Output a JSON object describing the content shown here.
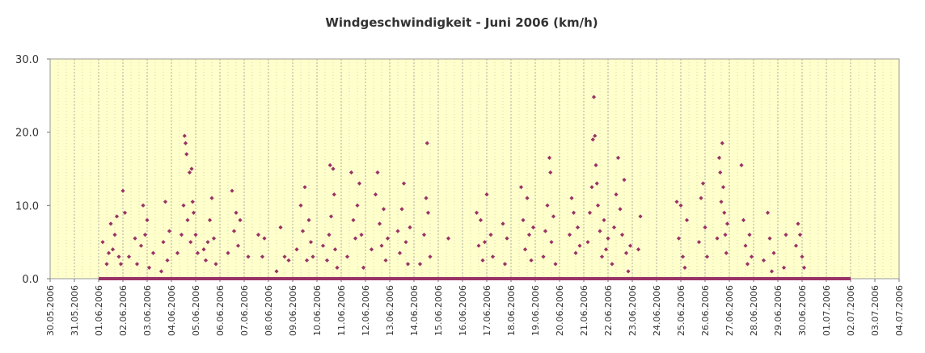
{
  "chart_data": {
    "type": "scatter",
    "title": "Windgeschwindigkeit - Juni 2006 (km/h)",
    "xlabel": "",
    "ylabel": "",
    "ylim": [
      0,
      30
    ],
    "yticks": [
      0,
      10,
      20,
      30
    ],
    "ytick_labels": [
      "0.0",
      "10.0",
      "20.0",
      "30.0"
    ],
    "xlim": [
      "30.05.2006",
      "04.07.2006"
    ],
    "xtick_labels": [
      "30.05.2006",
      "31.05.2006",
      "01.06.2006",
      "02.06.2006",
      "03.06.2006",
      "04.06.2006",
      "05.06.2006",
      "06.06.2006",
      "07.06.2006",
      "08.06.2006",
      "09.06.2006",
      "10.06.2006",
      "11.06.2006",
      "12.06.2006",
      "13.06.2006",
      "14.06.2006",
      "15.06.2006",
      "16.06.2006",
      "17.06.2006",
      "18.06.2006",
      "19.06.2006",
      "20.06.2006",
      "21.06.2006",
      "22.06.2006",
      "23.06.2006",
      "24.06.2006",
      "25.06.2006",
      "26.06.2006",
      "27.06.2006",
      "28.06.2006",
      "29.06.2006",
      "30.06.2006",
      "01.07.2006",
      "02.07.2006",
      "03.07.2006",
      "04.07.2006"
    ],
    "grid": true,
    "plot_background": "#FFFFCC",
    "marker_color": "#993366",
    "baseline": {
      "from": "01.06.2006",
      "to": "02.07.2006",
      "value": 0
    },
    "series": [
      {
        "points": [
          {
            "x": "01.06.2006 04:00",
            "y": 5.0
          },
          {
            "x": "01.06.2006 08:00",
            "y": 2.0
          },
          {
            "x": "01.06.2006 10:00",
            "y": 3.5
          },
          {
            "x": "01.06.2006 12:00",
            "y": 7.5
          },
          {
            "x": "01.06.2006 14:00",
            "y": 4.0
          },
          {
            "x": "01.06.2006 16:00",
            "y": 6.0
          },
          {
            "x": "01.06.2006 18:00",
            "y": 8.5
          },
          {
            "x": "01.06.2006 20:00",
            "y": 3.0
          },
          {
            "x": "01.06.2006 22:00",
            "y": 2.0
          },
          {
            "x": "02.06.2006 00:00",
            "y": 12.0
          },
          {
            "x": "02.06.2006 02:00",
            "y": 9.0
          },
          {
            "x": "02.06.2006 06:00",
            "y": 3.0
          },
          {
            "x": "02.06.2006 12:00",
            "y": 5.5
          },
          {
            "x": "02.06.2006 14:00",
            "y": 2.0
          },
          {
            "x": "02.06.2006 18:00",
            "y": 4.5
          },
          {
            "x": "02.06.2006 20:00",
            "y": 10.0
          },
          {
            "x": "02.06.2006 22:00",
            "y": 6.0
          },
          {
            "x": "03.06.2006 00:00",
            "y": 8.0
          },
          {
            "x": "03.06.2006 02:00",
            "y": 1.5
          },
          {
            "x": "03.06.2006 06:00",
            "y": 3.5
          },
          {
            "x": "03.06.2006 14:00",
            "y": 1.0
          },
          {
            "x": "03.06.2006 16:00",
            "y": 5.0
          },
          {
            "x": "03.06.2006 18:00",
            "y": 10.5
          },
          {
            "x": "03.06.2006 20:00",
            "y": 2.5
          },
          {
            "x": "03.06.2006 22:00",
            "y": 6.5
          },
          {
            "x": "04.06.2006 06:00",
            "y": 3.5
          },
          {
            "x": "04.06.2006 10:00",
            "y": 6.0
          },
          {
            "x": "04.06.2006 12:00",
            "y": 10.0
          },
          {
            "x": "04.06.2006 13:00",
            "y": 19.5
          },
          {
            "x": "04.06.2006 14:00",
            "y": 18.5
          },
          {
            "x": "04.06.2006 15:00",
            "y": 17.0
          },
          {
            "x": "04.06.2006 16:00",
            "y": 8.0
          },
          {
            "x": "04.06.2006 18:00",
            "y": 14.5
          },
          {
            "x": "04.06.2006 19:00",
            "y": 5.0
          },
          {
            "x": "04.06.2006 20:00",
            "y": 15.0
          },
          {
            "x": "04.06.2006 21:00",
            "y": 10.5
          },
          {
            "x": "04.06.2006 22:00",
            "y": 9.0
          },
          {
            "x": "05.06.2006 00:00",
            "y": 6.0
          },
          {
            "x": "05.06.2006 02:00",
            "y": 3.5
          },
          {
            "x": "05.06.2006 08:00",
            "y": 4.0
          },
          {
            "x": "05.06.2006 10:00",
            "y": 2.5
          },
          {
            "x": "05.06.2006 12:00",
            "y": 5.0
          },
          {
            "x": "05.06.2006 14:00",
            "y": 8.0
          },
          {
            "x": "05.06.2006 16:00",
            "y": 11.0
          },
          {
            "x": "05.06.2006 18:00",
            "y": 5.5
          },
          {
            "x": "05.06.2006 20:00",
            "y": 2.0
          },
          {
            "x": "06.06.2006 08:00",
            "y": 3.5
          },
          {
            "x": "06.06.2006 12:00",
            "y": 12.0
          },
          {
            "x": "06.06.2006 14:00",
            "y": 6.5
          },
          {
            "x": "06.06.2006 16:00",
            "y": 9.0
          },
          {
            "x": "06.06.2006 18:00",
            "y": 4.5
          },
          {
            "x": "06.06.2006 20:00",
            "y": 8.0
          },
          {
            "x": "07.06.2006 04:00",
            "y": 3.0
          },
          {
            "x": "07.06.2006 14:00",
            "y": 6.0
          },
          {
            "x": "07.06.2006 18:00",
            "y": 3.0
          },
          {
            "x": "07.06.2006 20:00",
            "y": 5.5
          },
          {
            "x": "08.06.2006 08:00",
            "y": 1.0
          },
          {
            "x": "08.06.2006 12:00",
            "y": 7.0
          },
          {
            "x": "08.06.2006 16:00",
            "y": 3.0
          },
          {
            "x": "08.06.2006 20:00",
            "y": 2.5
          },
          {
            "x": "09.06.2006 04:00",
            "y": 4.0
          },
          {
            "x": "09.06.2006 08:00",
            "y": 10.0
          },
          {
            "x": "09.06.2006 10:00",
            "y": 6.5
          },
          {
            "x": "09.06.2006 12:00",
            "y": 12.5
          },
          {
            "x": "09.06.2006 14:00",
            "y": 2.5
          },
          {
            "x": "09.06.2006 16:00",
            "y": 8.0
          },
          {
            "x": "09.06.2006 18:00",
            "y": 5.0
          },
          {
            "x": "09.06.2006 20:00",
            "y": 3.0
          },
          {
            "x": "10.06.2006 06:00",
            "y": 4.5
          },
          {
            "x": "10.06.2006 10:00",
            "y": 2.5
          },
          {
            "x": "10.06.2006 12:00",
            "y": 6.0
          },
          {
            "x": "10.06.2006 13:00",
            "y": 15.5
          },
          {
            "x": "10.06.2006 14:00",
            "y": 8.5
          },
          {
            "x": "10.06.2006 16:00",
            "y": 15.0
          },
          {
            "x": "10.06.2006 17:00",
            "y": 11.5
          },
          {
            "x": "10.06.2006 18:00",
            "y": 4.0
          },
          {
            "x": "10.06.2006 20:00",
            "y": 1.5
          },
          {
            "x": "11.06.2006 06:00",
            "y": 3.0
          },
          {
            "x": "11.06.2006 10:00",
            "y": 14.5
          },
          {
            "x": "11.06.2006 12:00",
            "y": 8.0
          },
          {
            "x": "11.06.2006 14:00",
            "y": 5.5
          },
          {
            "x": "11.06.2006 16:00",
            "y": 10.0
          },
          {
            "x": "11.06.2006 18:00",
            "y": 13.0
          },
          {
            "x": "11.06.2006 20:00",
            "y": 6.0
          },
          {
            "x": "11.06.2006 22:00",
            "y": 1.5
          },
          {
            "x": "12.06.2006 06:00",
            "y": 4.0
          },
          {
            "x": "12.06.2006 10:00",
            "y": 11.5
          },
          {
            "x": "12.06.2006 12:00",
            "y": 14.5
          },
          {
            "x": "12.06.2006 14:00",
            "y": 7.5
          },
          {
            "x": "12.06.2006 16:00",
            "y": 4.5
          },
          {
            "x": "12.06.2006 18:00",
            "y": 9.5
          },
          {
            "x": "12.06.2006 20:00",
            "y": 2.5
          },
          {
            "x": "12.06.2006 22:00",
            "y": 5.5
          },
          {
            "x": "13.06.2006 08:00",
            "y": 6.5
          },
          {
            "x": "13.06.2006 10:00",
            "y": 3.5
          },
          {
            "x": "13.06.2006 12:00",
            "y": 9.5
          },
          {
            "x": "13.06.2006 14:00",
            "y": 13.0
          },
          {
            "x": "13.06.2006 16:00",
            "y": 5.0
          },
          {
            "x": "13.06.2006 18:00",
            "y": 2.0
          },
          {
            "x": "13.06.2006 20:00",
            "y": 7.0
          },
          {
            "x": "14.06.2006 06:00",
            "y": 2.0
          },
          {
            "x": "14.06.2006 10:00",
            "y": 6.0
          },
          {
            "x": "14.06.2006 12:00",
            "y": 11.0
          },
          {
            "x": "14.06.2006 13:00",
            "y": 18.5
          },
          {
            "x": "14.06.2006 14:00",
            "y": 9.0
          },
          {
            "x": "14.06.2006 16:00",
            "y": 3.0
          },
          {
            "x": "15.06.2006 10:00",
            "y": 5.5
          },
          {
            "x": "16.06.2006 14:00",
            "y": 9.0
          },
          {
            "x": "16.06.2006 16:00",
            "y": 4.5
          },
          {
            "x": "16.06.2006 18:00",
            "y": 8.0
          },
          {
            "x": "16.06.2006 20:00",
            "y": 2.5
          },
          {
            "x": "16.06.2006 22:00",
            "y": 5.0
          },
          {
            "x": "17.06.2006 00:00",
            "y": 11.5
          },
          {
            "x": "17.06.2006 04:00",
            "y": 6.0
          },
          {
            "x": "17.06.2006 06:00",
            "y": 3.0
          },
          {
            "x": "17.06.2006 16:00",
            "y": 7.5
          },
          {
            "x": "17.06.2006 18:00",
            "y": 2.0
          },
          {
            "x": "17.06.2006 20:00",
            "y": 5.5
          },
          {
            "x": "18.06.2006 10:00",
            "y": 12.5
          },
          {
            "x": "18.06.2006 12:00",
            "y": 8.0
          },
          {
            "x": "18.06.2006 14:00",
            "y": 4.0
          },
          {
            "x": "18.06.2006 16:00",
            "y": 11.0
          },
          {
            "x": "18.06.2006 18:00",
            "y": 6.0
          },
          {
            "x": "18.06.2006 20:00",
            "y": 2.5
          },
          {
            "x": "18.06.2006 22:00",
            "y": 7.0
          },
          {
            "x": "19.06.2006 08:00",
            "y": 3.0
          },
          {
            "x": "19.06.2006 10:00",
            "y": 6.5
          },
          {
            "x": "19.06.2006 12:00",
            "y": 10.0
          },
          {
            "x": "19.06.2006 14:00",
            "y": 16.5
          },
          {
            "x": "19.06.2006 15:00",
            "y": 14.5
          },
          {
            "x": "19.06.2006 16:00",
            "y": 5.0
          },
          {
            "x": "19.06.2006 18:00",
            "y": 8.5
          },
          {
            "x": "19.06.2006 20:00",
            "y": 2.0
          },
          {
            "x": "20.06.2006 10:00",
            "y": 6.0
          },
          {
            "x": "20.06.2006 12:00",
            "y": 11.0
          },
          {
            "x": "20.06.2006 14:00",
            "y": 9.0
          },
          {
            "x": "20.06.2006 16:00",
            "y": 3.5
          },
          {
            "x": "20.06.2006 18:00",
            "y": 7.0
          },
          {
            "x": "20.06.2006 20:00",
            "y": 4.5
          },
          {
            "x": "21.06.2006 04:00",
            "y": 5.0
          },
          {
            "x": "21.06.2006 06:00",
            "y": 9.0
          },
          {
            "x": "21.06.2006 08:00",
            "y": 12.5
          },
          {
            "x": "21.06.2006 09:00",
            "y": 19.0
          },
          {
            "x": "21.06.2006 10:00",
            "y": 24.8
          },
          {
            "x": "21.06.2006 11:00",
            "y": 19.5
          },
          {
            "x": "21.06.2006 12:00",
            "y": 15.5
          },
          {
            "x": "21.06.2006 13:00",
            "y": 13.0
          },
          {
            "x": "21.06.2006 14:00",
            "y": 10.0
          },
          {
            "x": "21.06.2006 16:00",
            "y": 6.5
          },
          {
            "x": "21.06.2006 18:00",
            "y": 3.0
          },
          {
            "x": "21.06.2006 20:00",
            "y": 8.0
          },
          {
            "x": "21.06.2006 22:00",
            "y": 4.0
          },
          {
            "x": "22.06.2006 00:00",
            "y": 5.5
          },
          {
            "x": "22.06.2006 04:00",
            "y": 2.0
          },
          {
            "x": "22.06.2006 06:00",
            "y": 7.0
          },
          {
            "x": "22.06.2006 08:00",
            "y": 11.5
          },
          {
            "x": "22.06.2006 10:00",
            "y": 16.5
          },
          {
            "x": "22.06.2006 12:00",
            "y": 9.5
          },
          {
            "x": "22.06.2006 14:00",
            "y": 6.0
          },
          {
            "x": "22.06.2006 16:00",
            "y": 13.5
          },
          {
            "x": "22.06.2006 18:00",
            "y": 3.5
          },
          {
            "x": "22.06.2006 20:00",
            "y": 1.0
          },
          {
            "x": "22.06.2006 22:00",
            "y": 4.5
          },
          {
            "x": "23.06.2006 06:00",
            "y": 4.0
          },
          {
            "x": "23.06.2006 08:00",
            "y": 8.5
          },
          {
            "x": "24.06.2006 20:00",
            "y": 10.5
          },
          {
            "x": "24.06.2006 22:00",
            "y": 5.5
          },
          {
            "x": "25.06.2006 00:00",
            "y": 10.0
          },
          {
            "x": "25.06.2006 02:00",
            "y": 3.0
          },
          {
            "x": "25.06.2006 04:00",
            "y": 1.5
          },
          {
            "x": "25.06.2006 06:00",
            "y": 8.0
          },
          {
            "x": "25.06.2006 18:00",
            "y": 5.0
          },
          {
            "x": "25.06.2006 20:00",
            "y": 11.0
          },
          {
            "x": "25.06.2006 22:00",
            "y": 13.0
          },
          {
            "x": "26.06.2006 00:00",
            "y": 7.0
          },
          {
            "x": "26.06.2006 02:00",
            "y": 3.0
          },
          {
            "x": "26.06.2006 12:00",
            "y": 5.5
          },
          {
            "x": "26.06.2006 14:00",
            "y": 16.5
          },
          {
            "x": "26.06.2006 15:00",
            "y": 14.5
          },
          {
            "x": "26.06.2006 16:00",
            "y": 10.5
          },
          {
            "x": "26.06.2006 17:00",
            "y": 18.5
          },
          {
            "x": "26.06.2006 18:00",
            "y": 12.5
          },
          {
            "x": "26.06.2006 19:00",
            "y": 9.0
          },
          {
            "x": "26.06.2006 20:00",
            "y": 6.0
          },
          {
            "x": "26.06.2006 21:00",
            "y": 3.5
          },
          {
            "x": "26.06.2006 22:00",
            "y": 7.5
          },
          {
            "x": "27.06.2006 12:00",
            "y": 15.5
          },
          {
            "x": "27.06.2006 14:00",
            "y": 8.0
          },
          {
            "x": "27.06.2006 16:00",
            "y": 4.5
          },
          {
            "x": "27.06.2006 18:00",
            "y": 2.0
          },
          {
            "x": "27.06.2006 20:00",
            "y": 6.0
          },
          {
            "x": "27.06.2006 22:00",
            "y": 3.0
          },
          {
            "x": "28.06.2006 10:00",
            "y": 2.5
          },
          {
            "x": "28.06.2006 14:00",
            "y": 9.0
          },
          {
            "x": "28.06.2006 16:00",
            "y": 5.5
          },
          {
            "x": "28.06.2006 18:00",
            "y": 1.0
          },
          {
            "x": "28.06.2006 20:00",
            "y": 3.5
          },
          {
            "x": "29.06.2006 06:00",
            "y": 1.5
          },
          {
            "x": "29.06.2006 08:00",
            "y": 6.0
          },
          {
            "x": "29.06.2006 18:00",
            "y": 4.5
          },
          {
            "x": "29.06.2006 20:00",
            "y": 7.5
          },
          {
            "x": "29.06.2006 22:00",
            "y": 6.0
          },
          {
            "x": "30.06.2006 00:00",
            "y": 3.0
          },
          {
            "x": "30.06.2006 02:00",
            "y": 1.5
          }
        ]
      }
    ]
  }
}
